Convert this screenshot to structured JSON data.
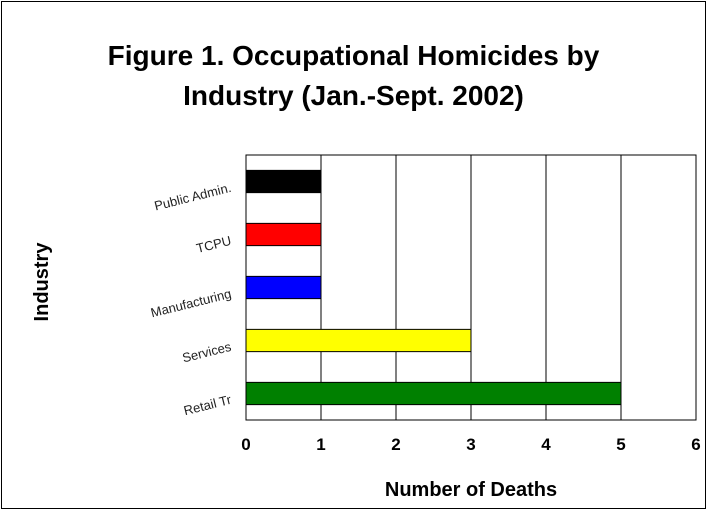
{
  "chart_data": {
    "type": "bar",
    "orientation": "horizontal",
    "title_lines": [
      "Figure 1. Occupational Homicides by",
      "Industry (Jan.-Sept. 2002)"
    ],
    "xlabel": "Number of Deaths",
    "ylabel": "Industry",
    "xlim": [
      0,
      6
    ],
    "xticks": [
      "0",
      "1",
      "2",
      "3",
      "4",
      "5",
      "6"
    ],
    "grid": "vertical",
    "legend": "none",
    "categories": [
      "Public Admin.",
      "TCPU",
      "Manufacturing",
      "Services",
      "Retail Tr"
    ],
    "values": [
      1,
      1,
      1,
      3,
      5
    ],
    "colors": [
      "#000000",
      "#ff0000",
      "#0000ff",
      "#ffff00",
      "#008000"
    ]
  }
}
